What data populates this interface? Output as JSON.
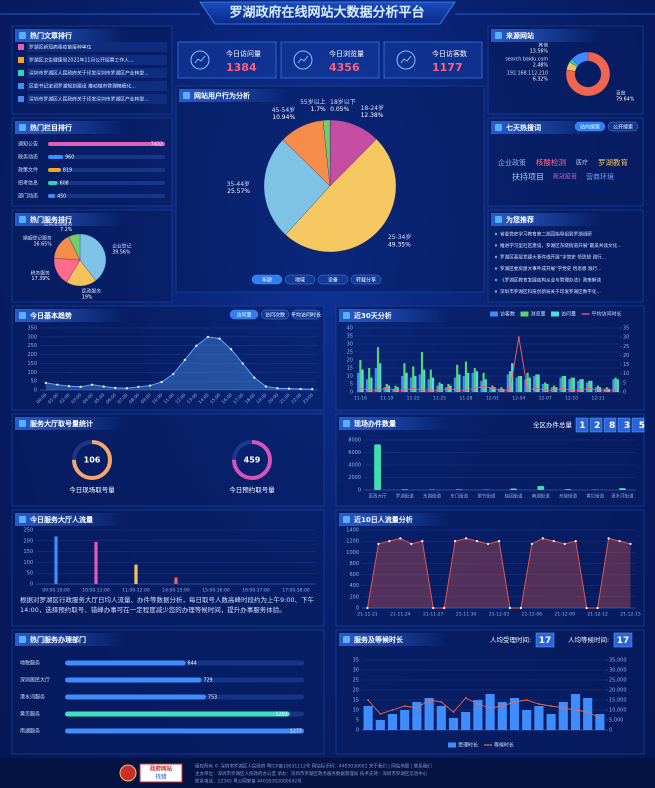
{
  "header": {
    "title": "罗湖政府在线网站大数据分析平台"
  },
  "articles": {
    "title": "热门文章排行",
    "items": [
      "罗湖区新冠病毒疫苗接种单位",
      "罗湖区卫生健康局2021年11月公开招聘工作人...",
      "深圳市罗湖区人民政府关于印发深圳市罗湖区产业转型...",
      "区委书记定调罗湖规划建设 推动城市管理精细化...",
      "深圳市罗湖区人民政府关于印发深圳市罗湖区产业转型..."
    ]
  },
  "stats": [
    {
      "label": "今日访问量",
      "value": 1384
    },
    {
      "label": "今日浏览量",
      "value": 4356
    },
    {
      "label": "今日访客数",
      "value": 1177
    }
  ],
  "hotwords": {
    "title": "七天热搜词",
    "tabs": [
      "站内搜索",
      "公开搜索"
    ],
    "words": [
      "企业政策",
      "核酸检测",
      "医疗",
      "罗湖教育",
      "扶持项目",
      "新冠疫苗",
      "营商环境"
    ]
  },
  "recommend": {
    "title": "为您推荐",
    "items": [
      "省委党史学习教育第二巡回指导组到罗湖调研",
      "推进学习型社区建设，罗湖区东晓街道开展“最美共读文化...",
      "罗湖区基层党建大事件线开展“学党史 悟思想 践行...",
      "罗湖区委房屋大事件成开展“学党史 悟思想 践行...",
      "《罗湖区教育发展结构从业与管理办法》政策解读",
      "深圳市罗湖区科技创新局关于印发罗湖区数字化..."
    ]
  },
  "queue": {
    "title": "服务大厅取号量统计",
    "items": [
      {
        "value": 106,
        "label": "今日现场取号量"
      },
      {
        "value": 459,
        "label": "今日预约取号量"
      }
    ]
  },
  "office_total": {
    "label": "全区办件总量",
    "value": 12835
  },
  "hall_note": "根据对罗湖区行政服务大厅日均人流量、办件等数据分析，每日取号人数高峰时段约为上午9:00、下午14:00，选择预约取号、错峰办事可在一定程度减少您的办理等候时间，提升办事服务体验。",
  "wait_stats": [
    {
      "label": "人均受理时间:",
      "value": 17
    },
    {
      "label": "人均等候时间:",
      "value": 17
    }
  ],
  "footer": {
    "badge": [
      "政府网站",
      "找错"
    ],
    "lines": [
      "版权所有 © 深圳市罗湖区人民政府   粤ICP备19031112号   网站标识码：4403030001   关于我们 | 网站地图 | 联系我们",
      "主办单位：深圳市罗湖区人民政府办公室   承办：深圳市罗湖区政务服务数据管理局   技术支持：深圳市罗湖区信息中心",
      "联系电话：12345   粤公网安备 44030302000042号"
    ]
  },
  "chart_data": [
    {
      "type": "hbar",
      "title": "热门栏目排行",
      "categories": [
        "通知公告",
        "政务动态",
        "政策文件",
        "招考信息",
        "部门动态"
      ],
      "values": [
        7432,
        960,
        819,
        608,
        450
      ],
      "colors": [
        "#e25cb8",
        "#3f8cff",
        "#f5a623",
        "#2fd0c2",
        "#3f8cff"
      ]
    },
    {
      "type": "pie",
      "title": "热门服务排行",
      "categories": [
        "企业登记",
        "民政服务",
        "税务服务",
        "婚姻登记服务",
        "公共法律服务"
      ],
      "values": [
        39.56,
        19,
        17.39,
        16.65,
        7.2
      ],
      "value_labels": [
        "39.56%",
        "19%",
        "17.39%",
        "16.65%",
        "7.2%"
      ],
      "colors": [
        "#7ec3e6",
        "#f5c25c",
        "#ff6b8a",
        "#f58c4a",
        "#6fcf6f"
      ]
    },
    {
      "type": "pie",
      "title": "网站用户行为分析",
      "tabs": [
        "年龄",
        "地域",
        "设备",
        "转载分享"
      ],
      "categories": [
        "18岁以下",
        "18-24岁",
        "25-34岁",
        "35-44岁",
        "45-54岁",
        "55岁以上"
      ],
      "values": [
        0.05,
        12.38,
        49.35,
        25.57,
        10.94,
        1.7
      ],
      "value_labels": [
        "0.05%",
        "12.38%",
        "49.35%",
        "25.57%",
        "10.94%",
        "1.7%"
      ],
      "colors": [
        "#8e5ad6",
        "#c44fa2",
        "#f5c862",
        "#7ec3e6",
        "#f58c4a",
        "#6fcf6f"
      ]
    },
    {
      "type": "donut",
      "title": "来源网站",
      "categories": [
        "百度",
        "192.168.112.210",
        "search.baidu.com",
        "其他"
      ],
      "values": [
        79.64,
        6.32,
        2.48,
        13.56
      ],
      "value_labels": [
        "79.64%",
        "6.32%",
        "2.48%",
        "13.56%"
      ],
      "colors": [
        "#f0654f",
        "#f5c25c",
        "#2fd0c2",
        "#3f8cff"
      ]
    },
    {
      "type": "area",
      "title": "今日基本趋势",
      "tabs": [
        "访问量",
        "访问次数",
        "平均访问时长"
      ],
      "categories": [
        "00:00",
        "01:00",
        "02:00",
        "03:00",
        "04:00",
        "05:00",
        "06:00",
        "07:00",
        "08:00",
        "09:00",
        "10:00",
        "11:00",
        "12:00",
        "13:00",
        "14:00",
        "15:00",
        "16:00",
        "17:00",
        "18:00",
        "19:00",
        "20:00",
        "21:00",
        "22:00",
        "23:00"
      ],
      "values": [
        40,
        30,
        22,
        18,
        30,
        20,
        12,
        10,
        18,
        25,
        45,
        90,
        170,
        250,
        300,
        290,
        230,
        150,
        70,
        20,
        10,
        8,
        6,
        5
      ],
      "color": "#5aa8ff",
      "ylim": [
        0,
        350
      ],
      "yticks": [
        0,
        50,
        100,
        150,
        200,
        250,
        300,
        350
      ]
    },
    {
      "type": "combo",
      "title": "近30天分析",
      "categories": [
        "11-16",
        null,
        null,
        "11-19",
        null,
        null,
        "11-22",
        null,
        null,
        "11-25",
        null,
        null,
        "11-28",
        null,
        null,
        "12-01",
        null,
        null,
        "12-04",
        null,
        null,
        "12-07",
        null,
        null,
        "12-10",
        null,
        null,
        "12-13",
        null,
        null
      ],
      "series": [
        {
          "name": "访客数",
          "color": "#3f8cff",
          "values": [
            12,
            8,
            15,
            3,
            2,
            10,
            9,
            11,
            8,
            4,
            3,
            9,
            10,
            12,
            7,
            3,
            2,
            11,
            9,
            8,
            10,
            5,
            3,
            9,
            8,
            7,
            6,
            3,
            2,
            8
          ]
        },
        {
          "name": "浏览量",
          "color": "#59d36b",
          "values": [
            20,
            15,
            28,
            5,
            4,
            18,
            16,
            25,
            14,
            6,
            5,
            17,
            19,
            15,
            12,
            4,
            3,
            13,
            10,
            12,
            11,
            6,
            4,
            10,
            9,
            8,
            7,
            4,
            3,
            9
          ]
        },
        {
          "name": "访问量",
          "color": "#48e0e0",
          "values": [
            14,
            9,
            18,
            4,
            3,
            12,
            10,
            14,
            9,
            5,
            4,
            11,
            12,
            13,
            8,
            3,
            2,
            18,
            10,
            9,
            11,
            5,
            3,
            10,
            9,
            8,
            7,
            3,
            2,
            8
          ]
        },
        {
          "name": "平均访问时长",
          "color": "#ff5e5e",
          "axis": "y2",
          "values": [
            2,
            1,
            1,
            2,
            1,
            1,
            2,
            1,
            1,
            1,
            2,
            1,
            1,
            2,
            3,
            2,
            1,
            1,
            30,
            1,
            2,
            1,
            1,
            2,
            1,
            1,
            2,
            1,
            1,
            1
          ]
        }
      ],
      "ylim": [
        0,
        40
      ],
      "yticks": [
        0,
        5,
        10,
        15,
        20,
        25,
        30,
        35,
        40
      ],
      "y2lim": [
        0,
        35
      ],
      "y2ticks": [
        0,
        5,
        10,
        15,
        20,
        25,
        30,
        35
      ]
    },
    {
      "type": "bar",
      "title": "现场办件数量",
      "categories": [
        "区政大厅",
        "罗湖街道",
        "东湖街道",
        "东门街道",
        "翠竹街道",
        "桂园街道",
        "南湖街道",
        "东晓街道",
        "黄贝街道",
        "清水河街道"
      ],
      "values": [
        7300,
        120,
        90,
        100,
        60,
        250,
        640,
        150,
        60,
        300
      ],
      "color": "#3fe0b0",
      "ylim": [
        0,
        8000
      ],
      "yticks": [
        0,
        2000,
        4000,
        6000,
        8000
      ]
    },
    {
      "type": "bar",
      "title": "今日服务大厅人流量",
      "categories": [
        "09:00-10:00",
        "10:00-11:00",
        "11:00-12:00",
        "14:00-15:00",
        "15:00-16:00",
        "16:00-17:00",
        "17:00-18:00"
      ],
      "values": [
        220,
        195,
        90,
        30,
        0,
        0,
        0
      ],
      "colors": [
        "#3f8cff",
        "#e25cb8",
        "#f5c25c",
        "#f0654f",
        "#3f8cff",
        "#3f8cff",
        "#3f8cff"
      ],
      "ylim": [
        0,
        250
      ],
      "yticks": [
        0,
        50,
        100,
        150,
        200,
        250
      ]
    },
    {
      "type": "area",
      "title": "近10日人流量分析",
      "categories": [
        "21-11-21",
        null,
        null,
        "21-11-24",
        null,
        null,
        "21-11-27",
        null,
        null,
        "21-11-30",
        null,
        null,
        "21-12-03",
        null,
        null,
        "21-12-06",
        null,
        null,
        "21-12-09",
        null,
        null,
        "21-12-12",
        null,
        null,
        "21-12-15"
      ],
      "values": [
        0,
        1150,
        1200,
        1250,
        1150,
        1200,
        0,
        0,
        1200,
        1250,
        1200,
        1150,
        1200,
        0,
        0,
        1150,
        1250,
        1200,
        1150,
        1200,
        0,
        0,
        1250,
        1200,
        1150
      ],
      "color": "#e0554a",
      "ylim": [
        0,
        1400
      ],
      "yticks": [
        0,
        200,
        400,
        600,
        800,
        1000,
        1200,
        1400
      ]
    },
    {
      "type": "hbar",
      "title": "热门服务办理部门",
      "categories": [
        "地税服务",
        "深圳居民大厅",
        "港水河服务",
        "黄贝服务",
        "南湖服务"
      ],
      "values": [
        644,
        729,
        753,
        1201,
        1277
      ],
      "colors": [
        "#3f8cff",
        "#3f8cff",
        "#3f8cff",
        "#3fe0c0",
        "#3f8cff"
      ]
    },
    {
      "type": "combo",
      "title": "服务及等候时长",
      "series": [
        {
          "name": "受理时长",
          "color": "#3f8cff",
          "values": [
            12,
            5,
            8,
            10,
            14,
            16,
            12,
            6,
            9,
            15,
            18,
            14,
            16,
            10,
            12,
            8,
            14,
            18,
            16,
            8
          ]
        },
        {
          "name": "等候时长",
          "color": "#f0654f",
          "axis": "y2",
          "values": [
            15000,
            8000,
            10000,
            12000,
            11000,
            15000,
            14000,
            9000,
            16000,
            13000,
            11000,
            12000,
            14000,
            15000,
            13000,
            12000,
            11000,
            10000,
            9000,
            6000
          ]
        }
      ],
      "ylim": [
        0,
        35
      ],
      "yticks": [
        0,
        5,
        10,
        15,
        20,
        25,
        30,
        35
      ],
      "y2lim": [
        0,
        35000
      ],
      "y2ticks": [
        0,
        {
          "value": 5000,
          "label": "5,000"
        },
        {
          "value": 10000,
          "label": "10,000"
        },
        {
          "value": 15000,
          "label": "15,000"
        },
        {
          "value": 20000,
          "label": "20,000"
        },
        {
          "value": 25000,
          "label": "25,000"
        },
        {
          "value": 30000,
          "label": "30,000"
        },
        {
          "value": 35000,
          "label": "35,000"
        }
      ]
    }
  ]
}
